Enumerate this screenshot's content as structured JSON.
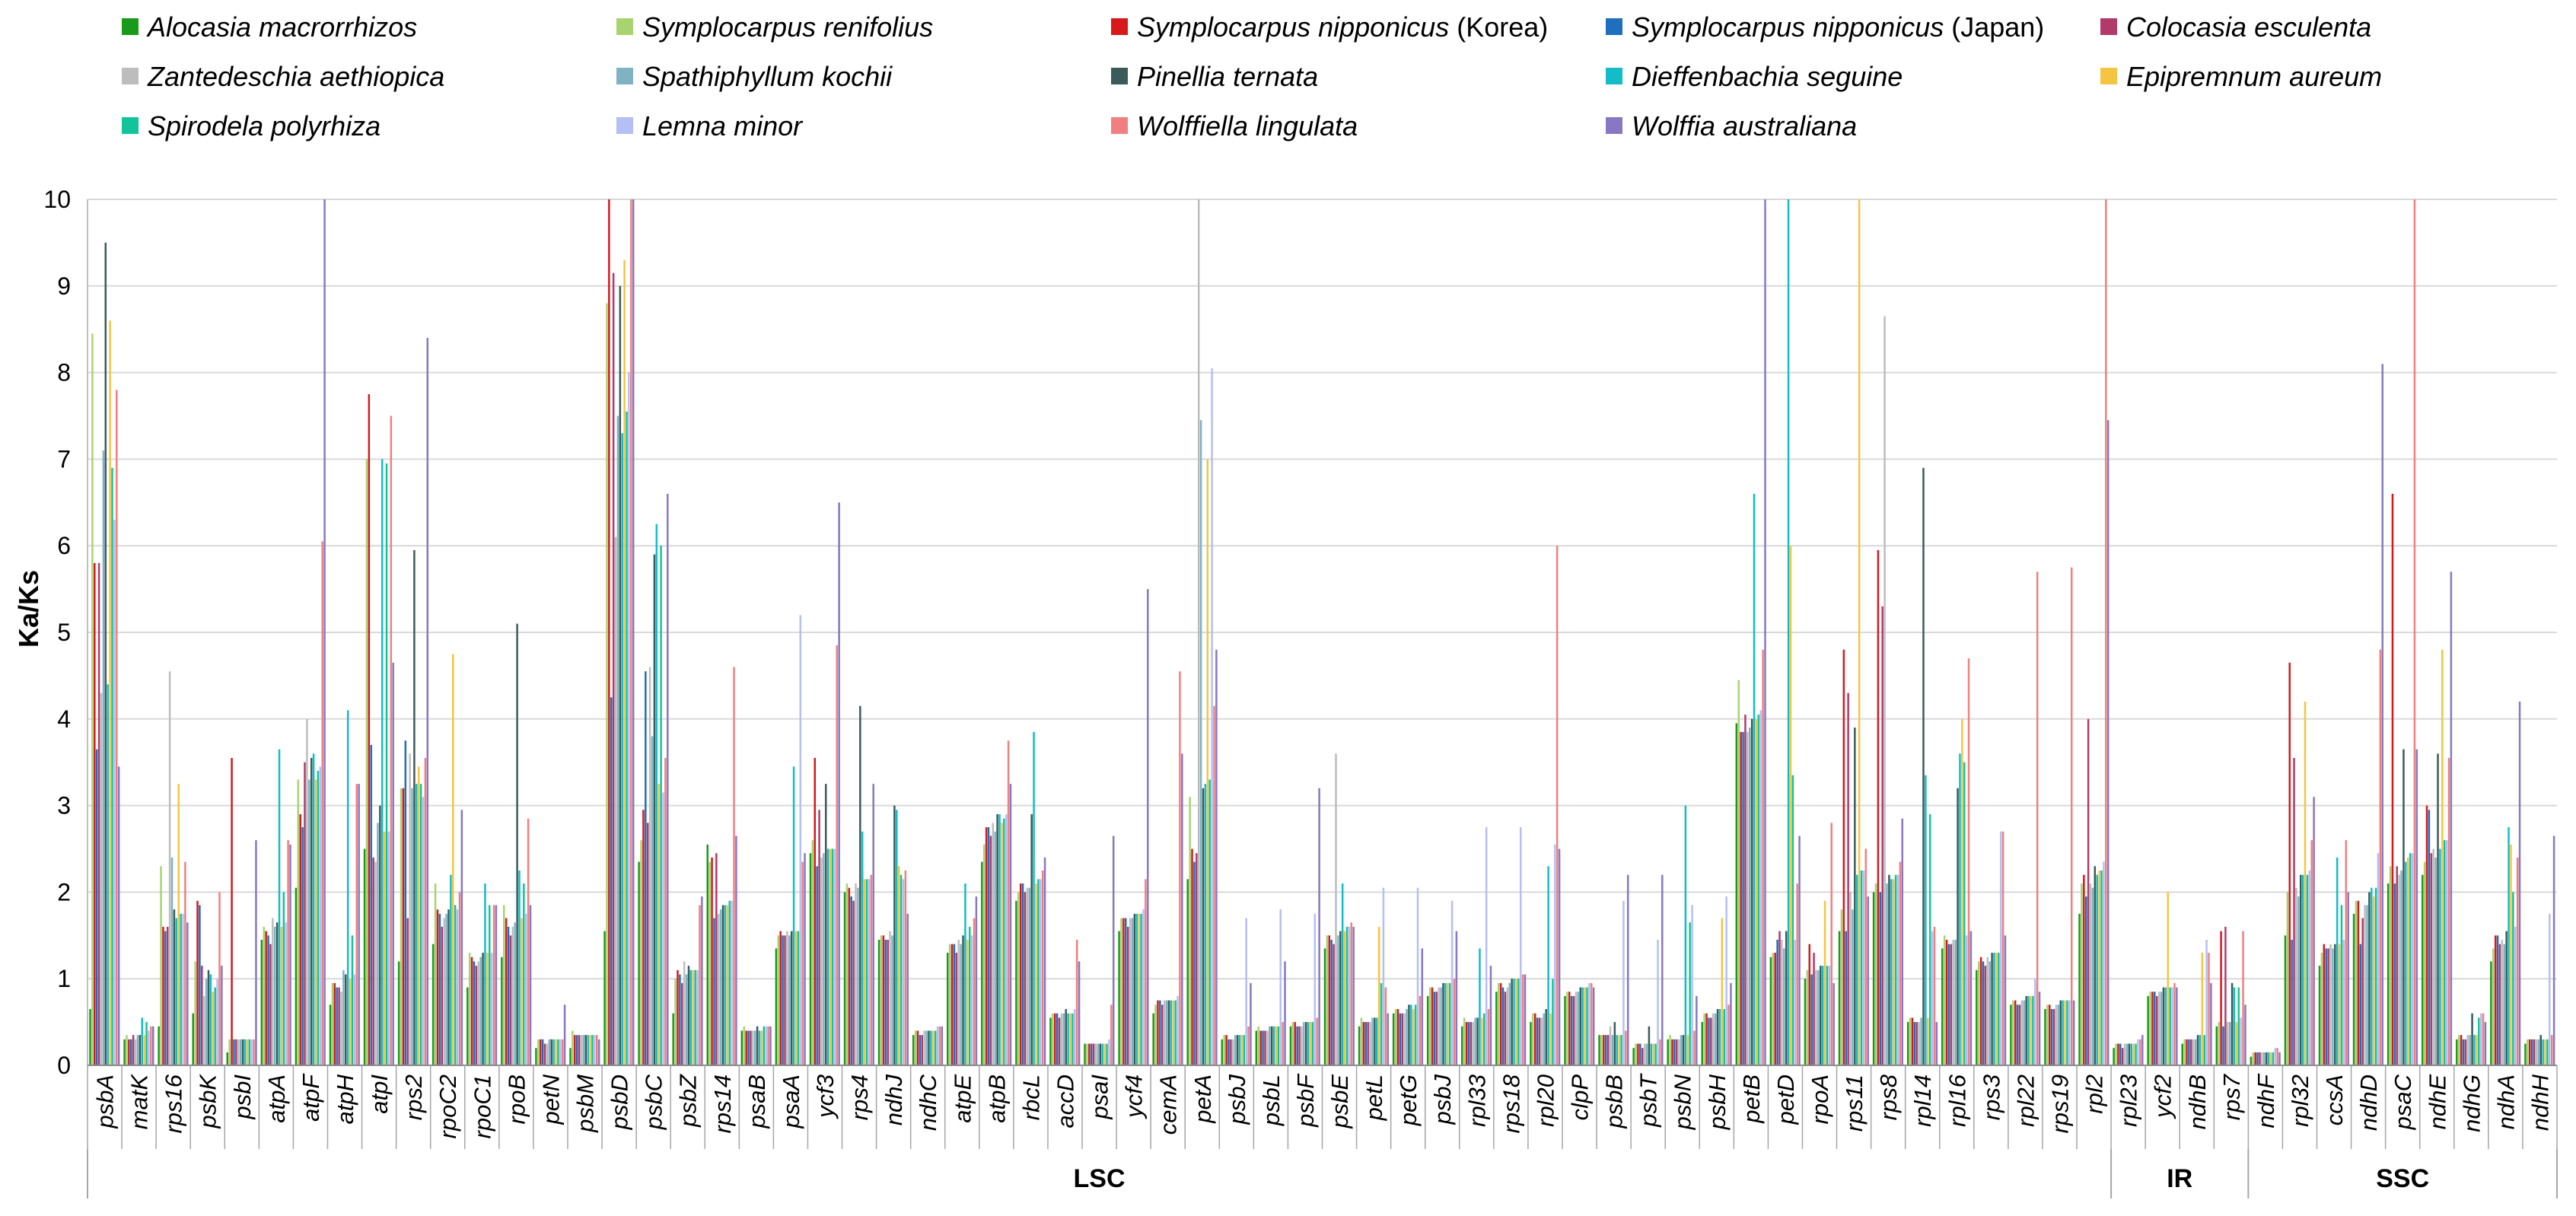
{
  "chart_data": {
    "type": "bar",
    "ylabel": "Ka/Ks",
    "ylim": [
      0,
      10
    ],
    "y_ticks": [
      "0",
      "1",
      "2",
      "3",
      "4",
      "5",
      "6",
      "7",
      "8",
      "9",
      "10"
    ],
    "grid": "horizontal",
    "legend_position": "top",
    "series": [
      {
        "name": "Alocasia macrorrhizos",
        "note": "",
        "color": "#1a9a1a"
      },
      {
        "name": "Symplocarpus renifolius",
        "note": "",
        "color": "#a8d46f"
      },
      {
        "name": "Symplocarpus nipponicus",
        "note": "(Korea)",
        "color": "#d7191c"
      },
      {
        "name": "Symplocarpus nipponicus",
        "note": "(Japan)",
        "color": "#1f6fbf"
      },
      {
        "name": "Colocasia esculenta",
        "note": "",
        "color": "#b03a6a"
      },
      {
        "name": "Zantedeschia aethiopica",
        "note": "",
        "color": "#bdbdbd"
      },
      {
        "name": "Spathiphyllum kochii",
        "note": "",
        "color": "#7fb3c4"
      },
      {
        "name": "Pinellia ternata",
        "note": "",
        "color": "#3b5b5b"
      },
      {
        "name": "Dieffenbachia seguine",
        "note": "",
        "color": "#14bcc8"
      },
      {
        "name": "Epipremnum aureum",
        "note": "",
        "color": "#f4c542"
      },
      {
        "name": "Spirodela polyrhiza",
        "note": "",
        "color": "#13c49a"
      },
      {
        "name": "Lemna minor",
        "note": "",
        "color": "#b4bff5"
      },
      {
        "name": "Wolffiella lingulata",
        "note": "",
        "color": "#f08080"
      },
      {
        "name": "Wolffia australiana",
        "note": "",
        "color": "#8878c3"
      }
    ],
    "categories": [
      "psbA",
      "matK",
      "rps16",
      "psbK",
      "psbI",
      "atpA",
      "atpF",
      "atpH",
      "atpI",
      "rps2",
      "rpoC2",
      "rpoC1",
      "rpoB",
      "petN",
      "psbM",
      "psbD",
      "psbC",
      "psbZ",
      "rps14",
      "psaB",
      "psaA",
      "ycf3",
      "rps4",
      "ndhJ",
      "ndhC",
      "atpE",
      "atpB",
      "rbcL",
      "accD",
      "psaI",
      "ycf4",
      "cemA",
      "petA",
      "psbJ",
      "psbL",
      "psbF",
      "psbE",
      "petL",
      "petG",
      "psbJ",
      "rpl33",
      "rps18",
      "rpl20",
      "clpP",
      "psbB",
      "psbT",
      "psbN",
      "psbH",
      "petB",
      "petD",
      "rpoA",
      "rps11",
      "rps8",
      "rpl14",
      "rpl16",
      "rps3",
      "rpl22",
      "rps19",
      "rpl2",
      "rpl23",
      "ycf2",
      "ndhB",
      "rps7",
      "ndhF",
      "rpl32",
      "ccsA",
      "ndhD",
      "psaC",
      "ndhE",
      "ndhG",
      "ndhA",
      "ndhH"
    ],
    "regions": [
      {
        "label": "LSC",
        "start": 0,
        "end": 58
      },
      {
        "label": "IR",
        "start": 59,
        "end": 62
      },
      {
        "label": "SSC",
        "start": 63,
        "end": 71
      }
    ],
    "values": [
      [
        0.65,
        0.3,
        0.45,
        0.6,
        0.15,
        1.45,
        2.05,
        0.7,
        2.5,
        1.2,
        1.4,
        0.9,
        1.25,
        0.2,
        0.2,
        1.55,
        2.35,
        0.6,
        2.55,
        0.4,
        1.35,
        2.45,
        2.0,
        1.45,
        0.35,
        1.3,
        2.35,
        1.9,
        0.55,
        0.25,
        1.55,
        0.6,
        2.15,
        0.3,
        0.4,
        0.45,
        1.35,
        0.45,
        0.6,
        0.8,
        0.45,
        0.85,
        0.5,
        0.8,
        0.35,
        0.2,
        0.3,
        0.5,
        3.95,
        1.25,
        1.0,
        1.55,
        2.0,
        0.5,
        1.35,
        1.1,
        0.7,
        0.65,
        1.75,
        0.2,
        0.8,
        0.25,
        0.45,
        0.1,
        1.5,
        1.15,
        1.75,
        2.1,
        2.2,
        0.3,
        1.2,
        0.25
      ],
      [
        8.45,
        0.35,
        2.3,
        1.2,
        0.3,
        1.6,
        3.3,
        0.95,
        7.0,
        3.2,
        2.1,
        1.3,
        1.85,
        0.3,
        0.4,
        8.8,
        2.6,
        1.0,
        2.35,
        0.45,
        1.5,
        2.6,
        2.1,
        1.5,
        0.4,
        1.4,
        2.55,
        2.0,
        0.6,
        0.25,
        1.7,
        0.7,
        3.1,
        0.35,
        0.45,
        0.5,
        1.5,
        0.55,
        0.65,
        0.9,
        0.55,
        0.95,
        0.6,
        0.85,
        0.35,
        0.25,
        0.35,
        0.6,
        4.45,
        1.3,
        1.1,
        1.8,
        2.1,
        0.55,
        1.5,
        1.2,
        0.75,
        0.7,
        2.1,
        0.25,
        0.85,
        0.3,
        0.5,
        0.15,
        2.0,
        1.3,
        1.9,
        2.3,
        2.35,
        0.35,
        1.35,
        0.3
      ],
      [
        5.8,
        0.3,
        1.6,
        1.9,
        3.55,
        1.55,
        2.9,
        0.95,
        7.75,
        3.2,
        1.8,
        1.25,
        1.7,
        0.3,
        0.35,
        10.0,
        2.95,
        1.1,
        2.4,
        0.4,
        1.55,
        3.55,
        2.05,
        1.5,
        0.4,
        1.4,
        2.75,
        2.1,
        0.6,
        0.25,
        1.7,
        0.75,
        2.5,
        0.35,
        0.4,
        0.5,
        1.5,
        0.5,
        0.65,
        0.9,
        0.5,
        0.95,
        0.6,
        0.85,
        0.35,
        0.25,
        0.3,
        0.6,
        3.85,
        1.3,
        1.4,
        4.8,
        5.95,
        0.55,
        1.45,
        1.25,
        0.75,
        0.7,
        2.2,
        0.25,
        0.85,
        0.3,
        1.55,
        0.15,
        4.65,
        1.4,
        1.9,
        6.6,
        3.0,
        0.35,
        1.5,
        0.3
      ],
      [
        3.65,
        0.3,
        1.55,
        1.85,
        0.3,
        1.5,
        2.75,
        0.9,
        3.7,
        3.75,
        1.75,
        1.2,
        1.6,
        0.3,
        0.35,
        4.25,
        4.55,
        1.05,
        1.7,
        0.4,
        1.5,
        2.3,
        1.95,
        1.45,
        0.35,
        1.4,
        2.75,
        2.1,
        0.6,
        0.25,
        1.7,
        0.75,
        2.35,
        0.3,
        0.4,
        0.45,
        1.45,
        0.5,
        0.6,
        0.85,
        0.5,
        0.9,
        0.55,
        0.8,
        0.35,
        0.25,
        0.3,
        0.55,
        3.85,
        1.45,
        1.05,
        1.55,
        2.0,
        0.5,
        1.4,
        1.2,
        0.7,
        0.65,
        1.95,
        0.25,
        0.85,
        0.3,
        0.45,
        0.15,
        1.45,
        1.35,
        1.4,
        2.1,
        2.95,
        0.3,
        1.5,
        0.3
      ],
      [
        5.8,
        0.35,
        1.6,
        1.15,
        0.3,
        1.4,
        3.5,
        0.9,
        2.4,
        1.7,
        1.6,
        1.15,
        1.5,
        0.25,
        0.35,
        9.15,
        2.8,
        0.95,
        2.45,
        0.4,
        1.5,
        2.95,
        1.9,
        1.45,
        0.35,
        1.3,
        2.65,
        2.0,
        0.55,
        0.25,
        1.6,
        0.7,
        2.45,
        0.3,
        0.4,
        0.45,
        1.4,
        0.5,
        0.6,
        0.85,
        0.5,
        0.85,
        0.55,
        0.8,
        0.35,
        0.2,
        0.3,
        0.55,
        4.05,
        1.55,
        1.3,
        4.3,
        5.3,
        0.5,
        1.4,
        1.15,
        0.7,
        0.65,
        4.0,
        0.2,
        0.8,
        0.3,
        1.6,
        0.15,
        3.55,
        1.35,
        1.7,
        2.3,
        2.45,
        0.3,
        1.4,
        0.3
      ],
      [
        4.3,
        0.3,
        4.55,
        0.8,
        0.3,
        1.7,
        4.0,
        0.85,
        2.35,
        3.6,
        1.7,
        1.2,
        1.6,
        0.25,
        0.35,
        6.1,
        4.6,
        1.2,
        1.75,
        0.4,
        1.55,
        2.4,
        2.1,
        1.55,
        0.4,
        1.45,
        2.8,
        2.05,
        0.6,
        0.25,
        1.7,
        0.75,
        10.0,
        0.3,
        0.4,
        0.45,
        3.6,
        0.5,
        0.6,
        0.9,
        0.5,
        0.9,
        0.55,
        0.85,
        0.45,
        0.25,
        0.3,
        0.6,
        3.85,
        1.45,
        1.1,
        2.0,
        8.65,
        0.5,
        1.45,
        1.25,
        0.75,
        0.7,
        2.1,
        0.25,
        0.85,
        0.3,
        0.5,
        0.15,
        2.05,
        1.4,
        1.85,
        2.2,
        2.5,
        0.35,
        1.45,
        0.3
      ],
      [
        7.1,
        0.35,
        2.4,
        1.0,
        0.3,
        1.6,
        3.3,
        1.1,
        2.8,
        3.2,
        1.75,
        1.25,
        1.65,
        0.3,
        0.35,
        7.5,
        3.8,
        1.05,
        1.8,
        0.4,
        1.5,
        2.45,
        2.05,
        1.5,
        0.4,
        1.4,
        2.7,
        2.05,
        0.6,
        0.25,
        1.7,
        0.75,
        7.45,
        0.35,
        0.45,
        0.5,
        1.5,
        0.55,
        0.65,
        0.9,
        0.55,
        0.95,
        0.6,
        0.85,
        0.35,
        0.25,
        0.35,
        0.6,
        3.9,
        1.35,
        1.1,
        1.8,
        2.1,
        0.55,
        1.45,
        1.2,
        0.75,
        0.7,
        2.05,
        0.25,
        0.85,
        0.3,
        0.5,
        0.15,
        1.95,
        1.35,
        1.85,
        2.25,
        2.4,
        0.35,
        1.4,
        0.3
      ],
      [
        9.5,
        0.35,
        1.8,
        1.1,
        0.3,
        1.65,
        3.55,
        1.05,
        3.0,
        5.95,
        1.8,
        1.3,
        5.1,
        0.3,
        0.35,
        9.0,
        5.9,
        1.15,
        1.85,
        0.45,
        1.55,
        3.25,
        4.15,
        3.0,
        0.4,
        1.5,
        2.9,
        2.9,
        0.65,
        0.25,
        1.75,
        0.75,
        3.2,
        0.35,
        0.45,
        0.5,
        1.55,
        0.55,
        0.7,
        0.95,
        0.55,
        1.0,
        0.65,
        0.9,
        0.5,
        0.45,
        0.35,
        0.65,
        4.0,
        1.55,
        1.15,
        3.9,
        2.2,
        6.9,
        3.2,
        1.3,
        0.8,
        0.75,
        2.3,
        0.25,
        0.9,
        0.35,
        0.95,
        0.15,
        2.2,
        1.4,
        2.0,
        3.65,
        3.6,
        0.6,
        1.55,
        0.35
      ],
      [
        4.4,
        0.55,
        1.7,
        1.05,
        0.3,
        3.65,
        3.6,
        4.1,
        7.0,
        3.25,
        2.2,
        2.1,
        2.25,
        0.3,
        0.35,
        7.3,
        6.25,
        1.1,
        1.85,
        0.4,
        3.45,
        2.5,
        2.7,
        2.95,
        0.4,
        2.1,
        2.9,
        3.85,
        0.6,
        0.25,
        1.75,
        0.75,
        3.25,
        0.35,
        0.45,
        0.5,
        2.1,
        0.55,
        0.7,
        0.95,
        1.35,
        1.0,
        2.3,
        0.9,
        0.35,
        0.25,
        3.0,
        0.65,
        6.6,
        10.0,
        1.15,
        2.2,
        2.15,
        3.35,
        3.6,
        1.3,
        0.8,
        0.75,
        2.2,
        0.25,
        0.9,
        0.35,
        0.9,
        0.15,
        2.2,
        2.4,
        2.05,
        2.35,
        2.5,
        0.35,
        2.75,
        0.3
      ],
      [
        8.6,
        0.35,
        3.25,
        0.85,
        0.3,
        1.6,
        3.3,
        1.0,
        2.7,
        3.45,
        4.75,
        1.3,
        1.7,
        0.3,
        0.35,
        9.3,
        3.25,
        1.1,
        1.85,
        0.4,
        1.55,
        2.5,
        2.15,
        2.3,
        0.4,
        1.45,
        2.8,
        2.1,
        0.6,
        0.25,
        1.75,
        0.75,
        7.0,
        0.35,
        0.45,
        0.5,
        1.55,
        1.6,
        0.65,
        0.95,
        0.55,
        1.0,
        0.6,
        0.9,
        0.35,
        0.25,
        0.35,
        1.7,
        4.0,
        6.0,
        1.9,
        10.0,
        2.15,
        0.55,
        4.0,
        1.3,
        0.8,
        0.75,
        2.25,
        0.25,
        2.0,
        1.3,
        0.5,
        0.15,
        4.2,
        1.4,
        1.95,
        2.4,
        4.8,
        0.35,
        2.55,
        0.3
      ],
      [
        6.9,
        0.5,
        1.75,
        0.9,
        0.3,
        2.0,
        3.4,
        1.5,
        6.95,
        3.25,
        1.85,
        1.85,
        2.1,
        0.3,
        0.35,
        7.55,
        6.0,
        1.1,
        1.9,
        0.45,
        1.55,
        2.5,
        2.15,
        2.2,
        0.4,
        1.6,
        2.85,
        2.15,
        0.6,
        0.25,
        1.75,
        0.75,
        3.3,
        0.35,
        0.45,
        0.5,
        1.6,
        0.95,
        0.7,
        0.95,
        0.6,
        1.0,
        1.0,
        0.9,
        0.35,
        0.25,
        1.65,
        0.65,
        4.05,
        3.35,
        1.15,
        2.25,
        2.2,
        2.9,
        3.5,
        1.3,
        0.8,
        0.75,
        2.25,
        0.25,
        0.9,
        0.35,
        0.9,
        0.15,
        2.2,
        1.85,
        2.05,
        2.45,
        2.6,
        0.55,
        2.0,
        0.3
      ],
      [
        6.3,
        0.4,
        1.75,
        1.0,
        0.3,
        1.65,
        3.45,
        1.05,
        2.7,
        3.1,
        1.8,
        1.3,
        1.75,
        0.3,
        0.35,
        8.0,
        3.15,
        1.1,
        1.9,
        0.45,
        5.2,
        2.5,
        2.15,
        2.15,
        0.45,
        1.5,
        2.9,
        2.15,
        0.65,
        0.3,
        1.8,
        0.8,
        8.05,
        1.7,
        1.8,
        1.75,
        1.6,
        2.05,
        2.05,
        1.9,
        2.75,
        2.75,
        2.55,
        0.95,
        1.9,
        1.45,
        1.85,
        1.95,
        4.1,
        1.45,
        1.15,
        2.25,
        2.2,
        1.55,
        1.5,
        2.7,
        1.0,
        0.75,
        2.35,
        0.3,
        0.9,
        1.45,
        0.55,
        0.2,
        2.25,
        1.45,
        2.45,
        2.45,
        2.6,
        0.6,
        1.6,
        1.75
      ],
      [
        7.8,
        0.45,
        2.35,
        2.0,
        0.3,
        2.6,
        6.05,
        3.25,
        7.5,
        3.55,
        2.0,
        1.85,
        2.85,
        0.3,
        0.35,
        10.0,
        3.55,
        1.85,
        4.6,
        0.45,
        2.35,
        4.85,
        2.2,
        2.25,
        0.45,
        1.7,
        3.75,
        2.25,
        1.45,
        0.7,
        2.15,
        4.55,
        4.15,
        0.45,
        0.5,
        0.55,
        1.65,
        0.9,
        0.8,
        1.0,
        0.65,
        1.05,
        6.0,
        0.95,
        0.4,
        0.3,
        0.4,
        0.7,
        4.8,
        2.1,
        2.8,
        2.5,
        2.35,
        1.6,
        4.7,
        2.7,
        5.7,
        5.75,
        10.0,
        0.3,
        0.95,
        1.3,
        1.55,
        0.2,
        2.6,
        2.6,
        4.8,
        10.0,
        3.55,
        0.6,
        2.4,
        0.35
      ],
      [
        3.45,
        0.45,
        1.65,
        1.15,
        2.6,
        2.55,
        10.0,
        3.25,
        4.65,
        8.4,
        2.95,
        1.85,
        1.85,
        0.7,
        0.3,
        10.0,
        6.6,
        1.95,
        2.65,
        0.45,
        2.45,
        6.5,
        3.25,
        1.75,
        0.45,
        1.95,
        3.25,
        2.4,
        1.2,
        2.65,
        5.5,
        3.6,
        4.8,
        0.95,
        1.2,
        3.2,
        1.6,
        0.6,
        1.35,
        1.55,
        1.15,
        1.05,
        2.5,
        0.9,
        2.2,
        2.2,
        0.8,
        0.95,
        10.0,
        2.65,
        0.95,
        1.95,
        2.85,
        0.5,
        1.55,
        1.5,
        0.85,
        0.75,
        7.45,
        0.35,
        0.9,
        0.95,
        0.7,
        0.15,
        3.1,
        2.0,
        8.1,
        3.65,
        5.7,
        0.5,
        4.2,
        2.65
      ]
    ]
  }
}
